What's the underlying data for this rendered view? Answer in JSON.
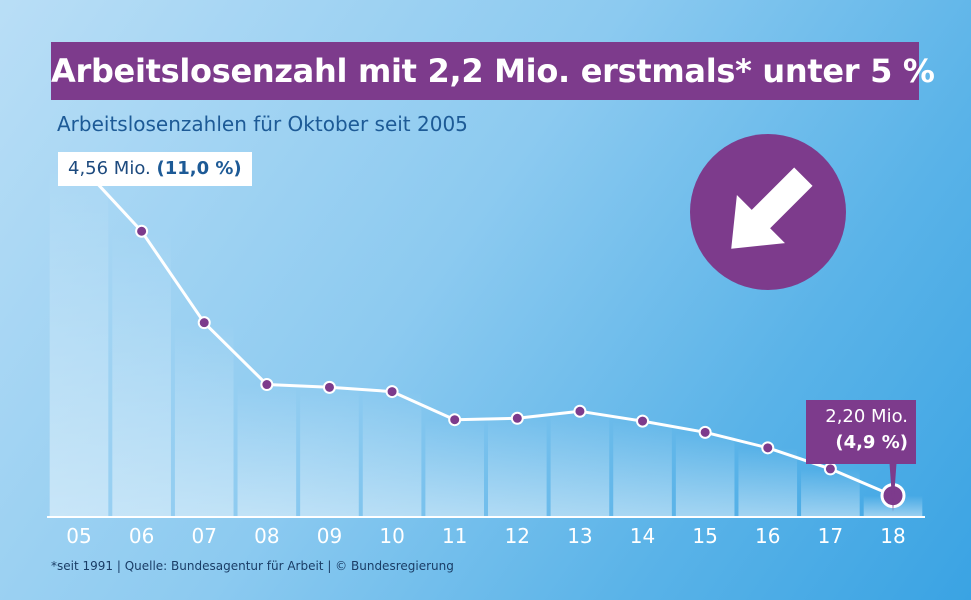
{
  "title": "Arbeitslosenzahl mit 2,2 Mio. erstmals* unter 5 %",
  "subtitle": "Arbeitslosenzahlen für Oktober seit 2005",
  "footnote": "*seit 1991  |  Quelle: Bundesagentur für Arbeit  |  © Bundesregierung",
  "callout_first": {
    "value": "4,56 Mio.",
    "percent": "(11,0 %)"
  },
  "callout_last": {
    "value": "2,20 Mio.",
    "percent": "(4,9 %)"
  },
  "icon": {
    "name": "arrow-down-right-icon",
    "color": "#7d3b8c"
  },
  "colors": {
    "accent": "#7d3b8c",
    "line": "#ffffff",
    "text_blue": "#1d5a96"
  },
  "chart_data": {
    "type": "line",
    "title": "Arbeitslosenzahl mit 2,2 Mio. erstmals* unter 5 %",
    "subtitle": "Arbeitslosenzahlen für Oktober seit 2005",
    "categories": [
      "05",
      "06",
      "07",
      "08",
      "09",
      "10",
      "11",
      "12",
      "13",
      "14",
      "15",
      "16",
      "17",
      "18"
    ],
    "values": [
      4.56,
      4.08,
      3.43,
      2.99,
      2.97,
      2.94,
      2.74,
      2.75,
      2.8,
      2.73,
      2.65,
      2.54,
      2.39,
      2.2
    ],
    "ylim": [
      1.6,
      4.8
    ],
    "grid": false
  }
}
